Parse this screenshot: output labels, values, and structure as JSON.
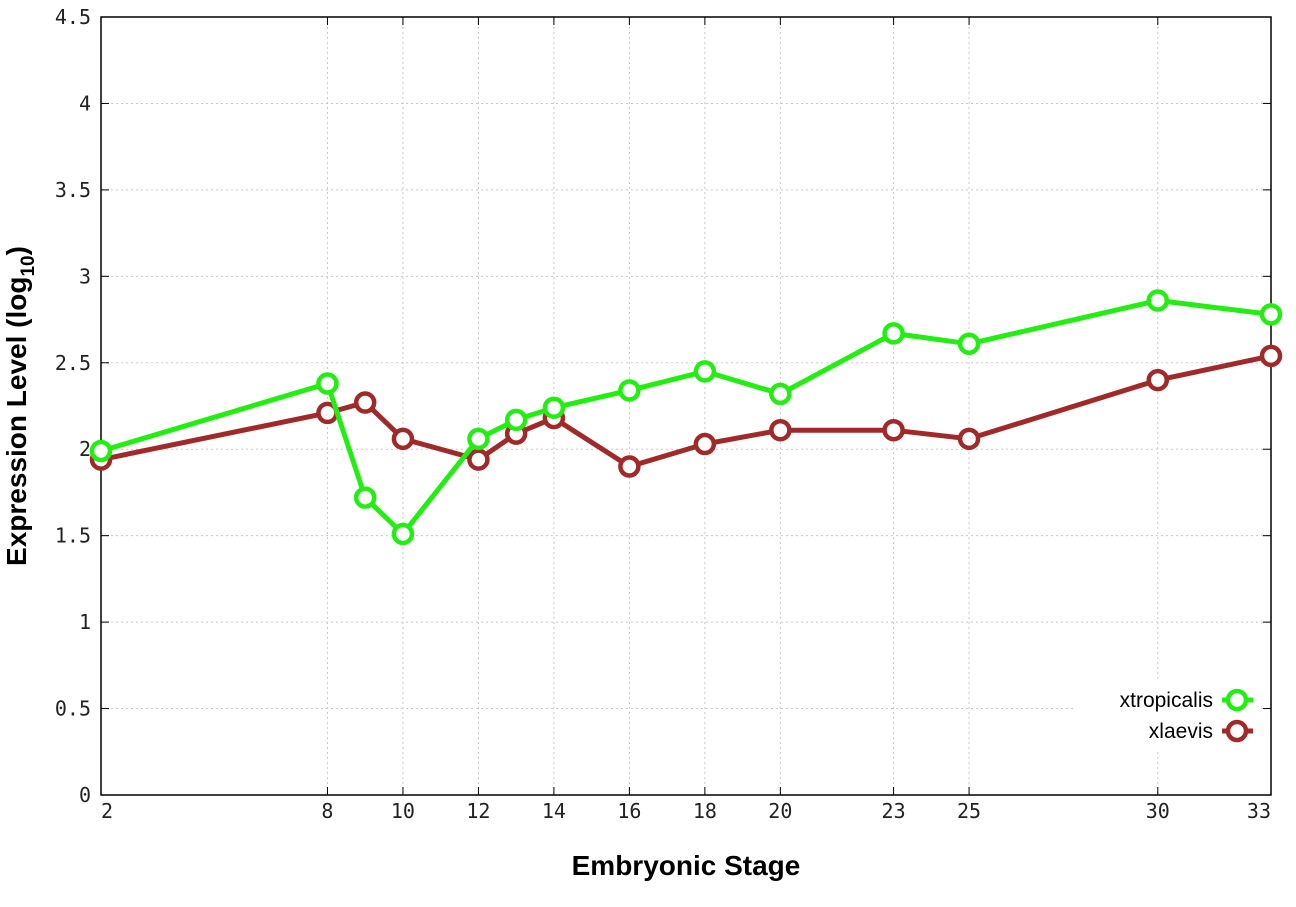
{
  "chart_data": {
    "type": "line",
    "xlabel": "Embryonic Stage",
    "ylabel": {
      "main": "Expression Level (log",
      "sub": "10",
      "close": ")"
    },
    "x_ticks": [
      2,
      8,
      10,
      12,
      14,
      16,
      18,
      20,
      23,
      25,
      30,
      33
    ],
    "y_ticks": [
      "0",
      "0.5",
      "1",
      "1.5",
      "2",
      "2.5",
      "3",
      "3.5",
      "4",
      "4.5"
    ],
    "xlim": [
      2,
      33
    ],
    "ylim": [
      0,
      4.5
    ],
    "grid": true,
    "legend_position": "bottom-right",
    "series": [
      {
        "name": "xtropicalis",
        "color": "#22ee11",
        "x": [
          2,
          8,
          9,
          10,
          12,
          13,
          14,
          16,
          18,
          20,
          23,
          25,
          30,
          33
        ],
        "y": [
          1.99,
          2.38,
          1.72,
          1.51,
          2.06,
          2.17,
          2.24,
          2.34,
          2.45,
          2.32,
          2.67,
          2.61,
          2.86,
          2.78
        ]
      },
      {
        "name": "xlaevis",
        "color": "#a02a2a",
        "x": [
          2,
          8,
          9,
          10,
          12,
          13,
          14,
          16,
          18,
          20,
          23,
          25,
          30,
          33
        ],
        "y": [
          1.94,
          2.21,
          2.27,
          2.06,
          1.94,
          2.09,
          2.18,
          1.9,
          2.03,
          2.11,
          2.11,
          2.06,
          2.4,
          2.54
        ]
      }
    ]
  }
}
